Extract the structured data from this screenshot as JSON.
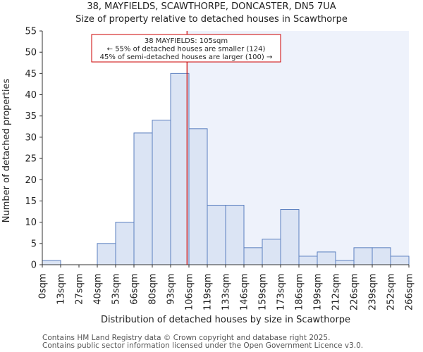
{
  "chart_data": {
    "type": "bar",
    "title": "38, MAYFIELDS, SCAWTHORPE, DONCASTER, DN5 7UA",
    "subtitle": "Size of property relative to detached houses in Scawthorpe",
    "xlabel": "Distribution of detached houses by size in Scawthorpe",
    "ylabel": "Number of detached properties",
    "x_tick_labels": [
      "0sqm",
      "13sqm",
      "27sqm",
      "40sqm",
      "53sqm",
      "66sqm",
      "80sqm",
      "93sqm",
      "106sqm",
      "119sqm",
      "133sqm",
      "146sqm",
      "159sqm",
      "173sqm",
      "186sqm",
      "199sqm",
      "212sqm",
      "226sqm",
      "239sqm",
      "252sqm",
      "266sqm"
    ],
    "values": [
      1,
      0,
      0,
      5,
      10,
      31,
      34,
      45,
      32,
      14,
      14,
      4,
      6,
      13,
      2,
      3,
      1,
      4,
      4,
      2
    ],
    "y_ticks": [
      0,
      5,
      10,
      15,
      20,
      25,
      30,
      35,
      40,
      45,
      50,
      55
    ],
    "ylim": [
      0,
      55
    ],
    "grid": false,
    "marker": {
      "value_sqm": 105,
      "label_lines": [
        "38 MAYFIELDS: 105sqm",
        "← 55% of detached houses are smaller (124)",
        "45% of semi-detached houses are larger (100) →"
      ]
    },
    "colors": {
      "bar_fill": "#dbe4f4",
      "bar_stroke": "#5b7fbf",
      "marker_line": "#cc0000",
      "highlight_bg": "#eef2fb"
    }
  },
  "footer": {
    "line1": "Contains HM Land Registry data © Crown copyright and database right 2025.",
    "line2": "Contains public sector information licensed under the Open Government Licence v3.0."
  }
}
